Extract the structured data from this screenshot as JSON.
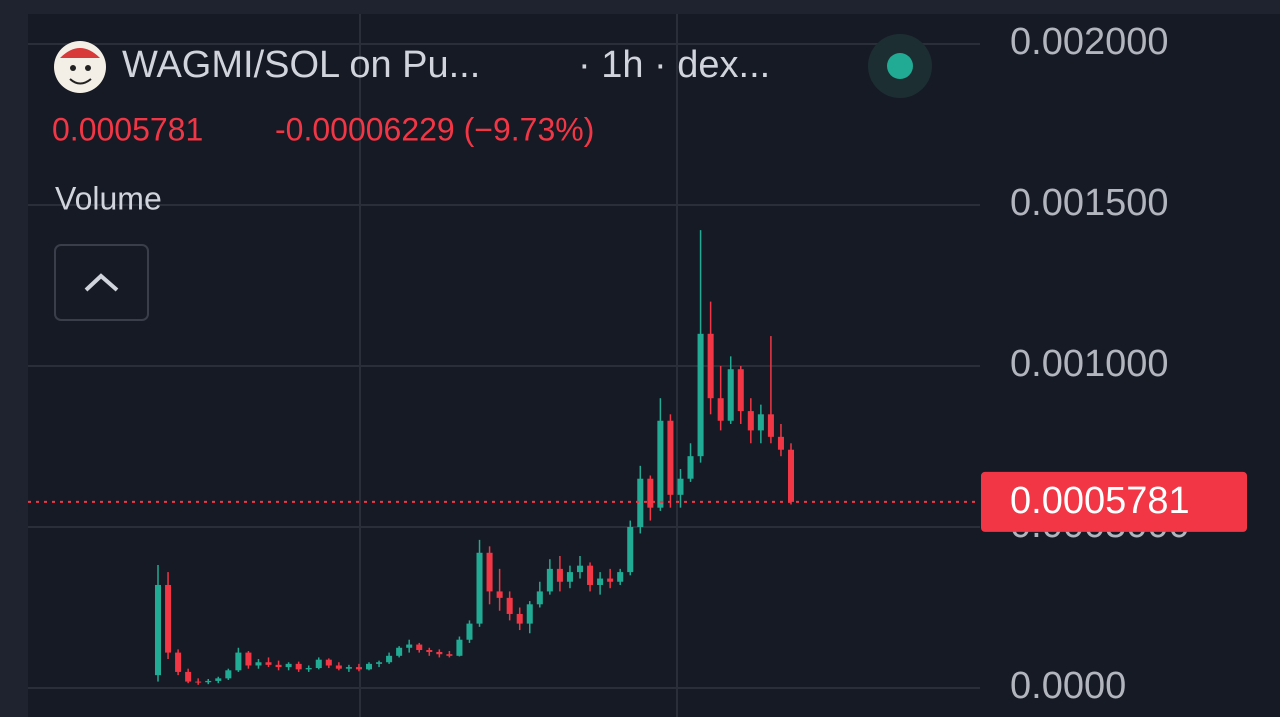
{
  "chart_data": {
    "type": "candlestick",
    "title": "WAGMI/SOL on Pu...",
    "subtitle": "· 1h · dex...",
    "header": {
      "price": "0.0005781",
      "change": "-0.00006229 (−9.73%)"
    },
    "indicator": "Volume",
    "up_color": "#22ab94",
    "down_color": "#f23645",
    "grid": true,
    "ylim": [
      -9e-05,
      0.0021366
    ],
    "yticks": [
      {
        "value": 0.002,
        "label": "0.002000"
      },
      {
        "value": 0.0015,
        "label": "0.001500"
      },
      {
        "value": 0.001,
        "label": "0.001000"
      },
      {
        "value": 0.0005,
        "label": "0.0005000"
      },
      {
        "value": 0,
        "label": "0.0000"
      }
    ],
    "last_price": {
      "value": 0.0005781,
      "label": "0.0005781"
    },
    "categories": [
      null,
      null,
      null,
      null,
      null,
      null,
      null,
      null,
      null,
      null,
      null,
      null,
      null,
      null,
      null,
      null,
      null,
      null,
      null,
      null,
      null,
      null,
      null,
      null,
      null,
      null,
      null,
      null,
      null,
      null,
      null,
      null,
      null,
      null,
      null,
      null,
      null,
      null,
      null,
      null,
      null,
      null,
      null,
      null,
      null,
      null,
      null,
      null,
      null,
      null,
      null,
      null,
      null,
      null,
      null,
      null,
      null,
      null,
      null,
      null,
      null,
      null,
      null,
      null
    ],
    "open": [
      4e-05,
      0.00032,
      0.00011,
      5e-05,
      2e-05,
      1.8e-05,
      2.2e-05,
      3e-05,
      5.5e-05,
      0.00011,
      7e-05,
      8e-05,
      7.2e-05,
      6.5e-05,
      7.5e-05,
      5.8e-05,
      6.2e-05,
      8.8e-05,
      7e-05,
      6e-05,
      6.5e-05,
      5.8e-05,
      7.5e-05,
      8e-05,
      0.0001,
      0.000125,
      0.000135,
      0.000118,
      0.000112,
      0.000105,
      0.0001,
      0.00015,
      0.0002,
      0.00042,
      0.0003,
      0.00028,
      0.00023,
      0.0002,
      0.00026,
      0.0003,
      0.00037,
      0.00033,
      0.00036,
      0.00038,
      0.00032,
      0.00034,
      0.00033,
      0.00036,
      0.0005,
      0.00065,
      0.00056,
      0.00083,
      0.0006,
      0.00065,
      0.00072,
      0.0011,
      0.0009,
      0.00083,
      0.00099,
      0.00086,
      0.0008,
      0.00085,
      0.00078,
      0.00074
    ],
    "high": [
      0.000382,
      0.00036,
      0.00012,
      6e-05,
      3e-05,
      2.8e-05,
      3.5e-05,
      6e-05,
      0.000125,
      0.000115,
      9e-05,
      9.5e-05,
      8.5e-05,
      8e-05,
      8.2e-05,
      7e-05,
      9.5e-05,
      9.2e-05,
      8e-05,
      7.2e-05,
      7.5e-05,
      8e-05,
      8.5e-05,
      0.00011,
      0.00013,
      0.00015,
      0.00014,
      0.000125,
      0.00012,
      0.000115,
      0.00016,
      0.00021,
      0.00046,
      0.00044,
      0.00037,
      0.0003,
      0.00025,
      0.00027,
      0.00033,
      0.0004,
      0.00041,
      0.00038,
      0.00041,
      0.00039,
      0.00036,
      0.00037,
      0.00037,
      0.00052,
      0.00069,
      0.00066,
      0.0009,
      0.00085,
      0.00068,
      0.00076,
      0.001422,
      0.0012,
      0.001,
      0.00103,
      0.001,
      0.0009,
      0.00088,
      0.001093,
      0.00082,
      0.00076
    ],
    "low": [
      2e-05,
      9e-05,
      4e-05,
      1.5e-05,
      1e-05,
      1.2e-05,
      1.5e-05,
      2.5e-05,
      5e-05,
      6e-05,
      6e-05,
      6.5e-05,
      5.5e-05,
      5.5e-05,
      5e-05,
      5e-05,
      5.8e-05,
      6.2e-05,
      5.5e-05,
      5e-05,
      5.2e-05,
      5.5e-05,
      6.5e-05,
      7.5e-05,
      9.5e-05,
      0.00011,
      0.00011,
      0.0001,
      9.5e-05,
      9.5e-05,
      9.8e-05,
      0.00014,
      0.00019,
      0.00026,
      0.00024,
      0.00021,
      0.00018,
      0.00017,
      0.00025,
      0.00029,
      0.0003,
      0.00031,
      0.00034,
      0.0003,
      0.00029,
      0.00031,
      0.00032,
      0.00035,
      0.00048,
      0.00052,
      0.00055,
      0.00056,
      0.00056,
      0.00064,
      0.0007,
      0.00085,
      0.0008,
      0.00082,
      0.00082,
      0.00076,
      0.00076,
      0.00076,
      0.00072,
      0.00057
    ],
    "close": [
      0.00032,
      0.00011,
      5e-05,
      2e-05,
      1.8e-05,
      2.2e-05,
      3e-05,
      5.5e-05,
      0.00011,
      7e-05,
      8e-05,
      7.2e-05,
      6.5e-05,
      7.5e-05,
      5.8e-05,
      6.2e-05,
      8.8e-05,
      7e-05,
      6e-05,
      6.5e-05,
      5.8e-05,
      7.5e-05,
      8e-05,
      0.0001,
      0.000125,
      0.000135,
      0.000118,
      0.000112,
      0.000105,
      0.0001,
      0.00015,
      0.0002,
      0.00042,
      0.0003,
      0.00028,
      0.00023,
      0.0002,
      0.00026,
      0.0003,
      0.00037,
      0.00033,
      0.00036,
      0.00038,
      0.00032,
      0.00034,
      0.00033,
      0.00036,
      0.0005,
      0.00065,
      0.00056,
      0.00083,
      0.0006,
      0.00065,
      0.00072,
      0.0011,
      0.0009,
      0.00083,
      0.00099,
      0.00086,
      0.0008,
      0.00085,
      0.00078,
      0.00074,
      0.0005781
    ]
  }
}
